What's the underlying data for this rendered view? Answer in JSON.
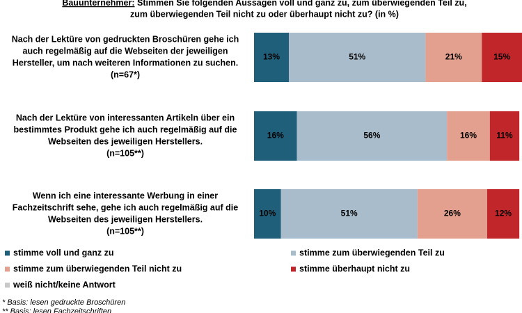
{
  "chart_data": {
    "type": "stacked-bar-horizontal",
    "title_prefix": "Bauunternehmer:",
    "title": [
      "Stimmen Sie folgenden Aussagen voll und ganz zu, zum überwiegenden Teil zu,",
      "zum überwiegenden Teil nicht zu oder überhaupt nicht zu? (in %)"
    ],
    "categories": [
      [
        "Nach der Lektüre von gedruckten Broschüren gehe ich",
        "auch regelmäßig auf die Webseiten der jeweiligen",
        "Hersteller, um nach weiteren Informationen zu suchen.",
        "(n=67*)"
      ],
      [
        "Nach der Lektüre von interessanten Artikeln über ein",
        "bestimmtes Produkt gehe ich auch regelmäßig auf die",
        "Webseiten des jeweiligen Herstellers.",
        "(n=105**)"
      ],
      [
        "Wenn ich eine interessante Werbung in einer",
        "Fachzeitschrift sehe, gehe ich auch regelmäßig auf die",
        "Webseiten des jeweiligen Herstellers.",
        "(n=105**)"
      ]
    ],
    "series": [
      {
        "name": "stimme voll und ganz zu",
        "color": "#1f5f7a",
        "values": [
          13,
          16,
          10
        ],
        "value_labels": [
          "13%",
          "16%",
          "10%"
        ]
      },
      {
        "name": "stimme zum überwiegenden Teil zu",
        "color": "#a9bccb",
        "values": [
          51,
          56,
          51
        ],
        "value_labels": [
          "51%",
          "56%",
          "51%"
        ]
      },
      {
        "name": "stimme zum überwiegenden Teil nicht zu",
        "color": "#e3a08e",
        "values": [
          21,
          16,
          26
        ],
        "value_labels": [
          "21%",
          "16%",
          "26%"
        ]
      },
      {
        "name": "stimme überhaupt nicht zu",
        "color": "#c0262a",
        "values": [
          15,
          11,
          12
        ],
        "value_labels": [
          "15%",
          "11%",
          "12%"
        ]
      },
      {
        "name": "weiß nicht/keine Antwort",
        "color": "#c8c8c8",
        "values": [
          0,
          0,
          0
        ]
      }
    ],
    "xlim": [
      0,
      100
    ],
    "footnotes": [
      "* Basis: lesen gedruckte Broschüren",
      "** Basis: lesen Fachzeitschriften"
    ]
  }
}
